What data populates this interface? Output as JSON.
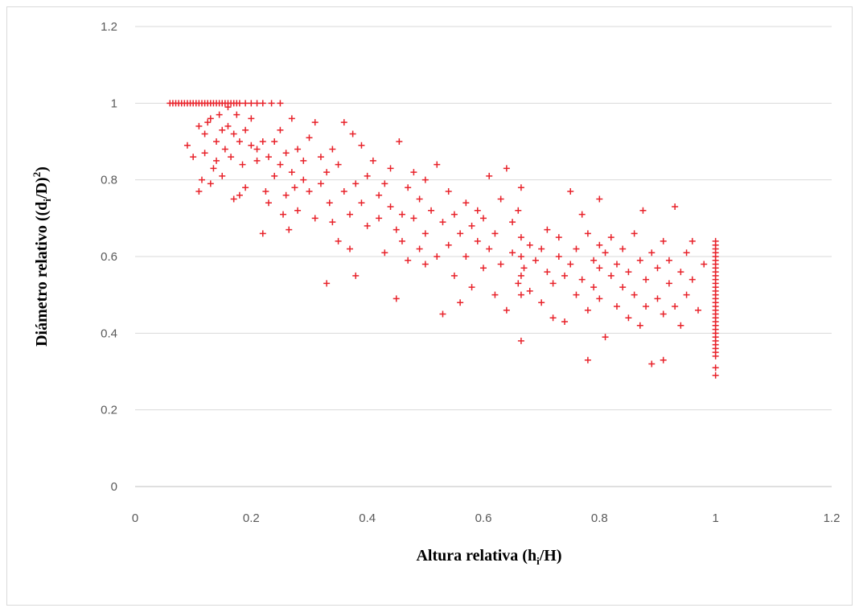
{
  "chart_data": {
    "type": "scatter",
    "title": "",
    "xlabel": {
      "main": "Altura relativa (h",
      "sub": "i",
      "tail": "/H)"
    },
    "ylabel": {
      "main": "Diámetro relativo ((d",
      "sub": "i",
      "mid": "/D)",
      "sup": "2",
      "tail": ")"
    },
    "xlim": [
      0,
      1.2
    ],
    "ylim": [
      0,
      1.2
    ],
    "x_ticks": [
      "0",
      "0.2",
      "0.4",
      "0.6",
      "0.8",
      "1",
      "1.2"
    ],
    "y_ticks": [
      "0",
      "0.2",
      "0.4",
      "0.6",
      "0.8",
      "1",
      "1.2"
    ],
    "grid": "horizontal",
    "marker": "plus",
    "color": "#e8222a",
    "series": [
      {
        "points": [
          [
            0.06,
            1
          ],
          [
            0.065,
            1
          ],
          [
            0.07,
            1
          ],
          [
            0.075,
            1
          ],
          [
            0.08,
            1
          ],
          [
            0.085,
            1
          ],
          [
            0.09,
            1
          ],
          [
            0.095,
            1
          ],
          [
            0.1,
            1
          ],
          [
            0.105,
            1
          ],
          [
            0.11,
            1
          ],
          [
            0.115,
            1
          ],
          [
            0.12,
            1
          ],
          [
            0.125,
            1
          ],
          [
            0.13,
            1
          ],
          [
            0.135,
            1
          ],
          [
            0.14,
            1
          ],
          [
            0.145,
            1
          ],
          [
            0.15,
            1
          ],
          [
            0.155,
            1
          ],
          [
            0.16,
            1
          ],
          [
            0.165,
            1
          ],
          [
            0.17,
            1
          ],
          [
            0.175,
            1
          ],
          [
            0.18,
            1
          ],
          [
            0.19,
            1
          ],
          [
            0.2,
            1
          ],
          [
            0.21,
            1
          ],
          [
            0.22,
            1
          ],
          [
            0.235,
            1
          ],
          [
            0.25,
            1
          ],
          [
            0.09,
            0.89
          ],
          [
            0.1,
            0.86
          ],
          [
            0.11,
            0.94
          ],
          [
            0.11,
            0.77
          ],
          [
            0.115,
            0.8
          ],
          [
            0.12,
            0.92
          ],
          [
            0.12,
            0.87
          ],
          [
            0.125,
            0.95
          ],
          [
            0.13,
            0.96
          ],
          [
            0.13,
            0.79
          ],
          [
            0.135,
            0.83
          ],
          [
            0.14,
            0.9
          ],
          [
            0.14,
            0.85
          ],
          [
            0.145,
            0.97
          ],
          [
            0.15,
            0.93
          ],
          [
            0.15,
            0.81
          ],
          [
            0.155,
            0.88
          ],
          [
            0.16,
            0.94
          ],
          [
            0.16,
            0.99
          ],
          [
            0.165,
            0.86
          ],
          [
            0.17,
            0.92
          ],
          [
            0.17,
            0.75
          ],
          [
            0.175,
            0.97
          ],
          [
            0.18,
            0.9
          ],
          [
            0.18,
            0.76
          ],
          [
            0.185,
            0.84
          ],
          [
            0.19,
            0.93
          ],
          [
            0.19,
            0.78
          ],
          [
            0.2,
            0.89
          ],
          [
            0.2,
            0.96
          ],
          [
            0.21,
            0.85
          ],
          [
            0.21,
            0.88
          ],
          [
            0.22,
            0.9
          ],
          [
            0.22,
            0.66
          ],
          [
            0.225,
            0.77
          ],
          [
            0.23,
            0.86
          ],
          [
            0.23,
            0.74
          ],
          [
            0.24,
            0.81
          ],
          [
            0.24,
            0.9
          ],
          [
            0.25,
            0.84
          ],
          [
            0.25,
            0.93
          ],
          [
            0.255,
            0.71
          ],
          [
            0.26,
            0.76
          ],
          [
            0.26,
            0.87
          ],
          [
            0.265,
            0.67
          ],
          [
            0.27,
            0.82
          ],
          [
            0.27,
            0.96
          ],
          [
            0.275,
            0.78
          ],
          [
            0.28,
            0.88
          ],
          [
            0.28,
            0.72
          ],
          [
            0.29,
            0.85
          ],
          [
            0.29,
            0.8
          ],
          [
            0.3,
            0.91
          ],
          [
            0.3,
            0.77
          ],
          [
            0.31,
            0.95
          ],
          [
            0.31,
            0.7
          ],
          [
            0.32,
            0.86
          ],
          [
            0.32,
            0.79
          ],
          [
            0.33,
            0.82
          ],
          [
            0.33,
            0.53
          ],
          [
            0.335,
            0.74
          ],
          [
            0.34,
            0.88
          ],
          [
            0.34,
            0.69
          ],
          [
            0.35,
            0.84
          ],
          [
            0.35,
            0.64
          ],
          [
            0.36,
            0.77
          ],
          [
            0.36,
            0.95
          ],
          [
            0.37,
            0.71
          ],
          [
            0.37,
            0.62
          ],
          [
            0.375,
            0.92
          ],
          [
            0.38,
            0.79
          ],
          [
            0.38,
            0.55
          ],
          [
            0.39,
            0.89
          ],
          [
            0.39,
            0.74
          ],
          [
            0.4,
            0.81
          ],
          [
            0.4,
            0.68
          ],
          [
            0.41,
            0.85
          ],
          [
            0.42,
            0.76
          ],
          [
            0.42,
            0.7
          ],
          [
            0.43,
            0.79
          ],
          [
            0.43,
            0.61
          ],
          [
            0.44,
            0.73
          ],
          [
            0.44,
            0.83
          ],
          [
            0.45,
            0.67
          ],
          [
            0.45,
            0.49
          ],
          [
            0.455,
            0.9
          ],
          [
            0.46,
            0.71
          ],
          [
            0.46,
            0.64
          ],
          [
            0.47,
            0.78
          ],
          [
            0.47,
            0.59
          ],
          [
            0.48,
            0.82
          ],
          [
            0.48,
            0.7
          ],
          [
            0.49,
            0.75
          ],
          [
            0.49,
            0.62
          ],
          [
            0.5,
            0.8
          ],
          [
            0.5,
            0.66
          ],
          [
            0.5,
            0.58
          ],
          [
            0.51,
            0.72
          ],
          [
            0.52,
            0.84
          ],
          [
            0.52,
            0.6
          ],
          [
            0.53,
            0.69
          ],
          [
            0.53,
            0.45
          ],
          [
            0.54,
            0.77
          ],
          [
            0.54,
            0.63
          ],
          [
            0.55,
            0.71
          ],
          [
            0.55,
            0.55
          ],
          [
            0.56,
            0.48
          ],
          [
            0.56,
            0.66
          ],
          [
            0.57,
            0.74
          ],
          [
            0.57,
            0.6
          ],
          [
            0.58,
            0.68
          ],
          [
            0.58,
            0.52
          ],
          [
            0.59,
            0.72
          ],
          [
            0.59,
            0.64
          ],
          [
            0.6,
            0.57
          ],
          [
            0.6,
            0.7
          ],
          [
            0.61,
            0.81
          ],
          [
            0.61,
            0.62
          ],
          [
            0.62,
            0.66
          ],
          [
            0.62,
            0.5
          ],
          [
            0.63,
            0.75
          ],
          [
            0.63,
            0.58
          ],
          [
            0.64,
            0.83
          ],
          [
            0.64,
            0.46
          ],
          [
            0.65,
            0.69
          ],
          [
            0.65,
            0.61
          ],
          [
            0.66,
            0.53
          ],
          [
            0.66,
            0.72
          ],
          [
            0.665,
            0.78
          ],
          [
            0.665,
            0.65
          ],
          [
            0.665,
            0.6
          ],
          [
            0.665,
            0.55
          ],
          [
            0.665,
            0.5
          ],
          [
            0.665,
            0.38
          ],
          [
            0.67,
            0.57
          ],
          [
            0.68,
            0.63
          ],
          [
            0.68,
            0.51
          ],
          [
            0.69,
            0.59
          ],
          [
            0.7,
            0.62
          ],
          [
            0.7,
            0.48
          ],
          [
            0.71,
            0.56
          ],
          [
            0.71,
            0.67
          ],
          [
            0.72,
            0.53
          ],
          [
            0.72,
            0.44
          ],
          [
            0.73,
            0.6
          ],
          [
            0.73,
            0.65
          ],
          [
            0.74,
            0.55
          ],
          [
            0.74,
            0.43
          ],
          [
            0.75,
            0.77
          ],
          [
            0.75,
            0.58
          ],
          [
            0.76,
            0.62
          ],
          [
            0.76,
            0.5
          ],
          [
            0.77,
            0.71
          ],
          [
            0.77,
            0.54
          ],
          [
            0.78,
            0.66
          ],
          [
            0.78,
            0.46
          ],
          [
            0.78,
            0.33
          ],
          [
            0.79,
            0.59
          ],
          [
            0.79,
            0.52
          ],
          [
            0.8,
            0.75
          ],
          [
            0.8,
            0.63
          ],
          [
            0.8,
            0.57
          ],
          [
            0.8,
            0.49
          ],
          [
            0.81,
            0.61
          ],
          [
            0.81,
            0.39
          ],
          [
            0.82,
            0.55
          ],
          [
            0.82,
            0.65
          ],
          [
            0.83,
            0.47
          ],
          [
            0.83,
            0.58
          ],
          [
            0.84,
            0.52
          ],
          [
            0.84,
            0.62
          ],
          [
            0.85,
            0.56
          ],
          [
            0.85,
            0.44
          ],
          [
            0.86,
            0.66
          ],
          [
            0.86,
            0.5
          ],
          [
            0.87,
            0.59
          ],
          [
            0.87,
            0.42
          ],
          [
            0.875,
            0.72
          ],
          [
            0.88,
            0.54
          ],
          [
            0.88,
            0.47
          ],
          [
            0.89,
            0.61
          ],
          [
            0.89,
            0.32
          ],
          [
            0.9,
            0.57
          ],
          [
            0.9,
            0.49
          ],
          [
            0.91,
            0.64
          ],
          [
            0.91,
            0.45
          ],
          [
            0.91,
            0.33
          ],
          [
            0.92,
            0.53
          ],
          [
            0.92,
            0.59
          ],
          [
            0.93,
            0.47
          ],
          [
            0.93,
            0.73
          ],
          [
            0.94,
            0.56
          ],
          [
            0.94,
            0.42
          ],
          [
            0.95,
            0.61
          ],
          [
            0.95,
            0.5
          ],
          [
            0.96,
            0.64
          ],
          [
            0.96,
            0.54
          ],
          [
            0.97,
            0.46
          ],
          [
            0.98,
            0.58
          ],
          [
            1.0,
            0.64
          ],
          [
            1.0,
            0.63
          ],
          [
            1.0,
            0.62
          ],
          [
            1.0,
            0.61
          ],
          [
            1.0,
            0.6
          ],
          [
            1.0,
            0.59
          ],
          [
            1.0,
            0.58
          ],
          [
            1.0,
            0.57
          ],
          [
            1.0,
            0.56
          ],
          [
            1.0,
            0.55
          ],
          [
            1.0,
            0.54
          ],
          [
            1.0,
            0.53
          ],
          [
            1.0,
            0.52
          ],
          [
            1.0,
            0.51
          ],
          [
            1.0,
            0.5
          ],
          [
            1.0,
            0.49
          ],
          [
            1.0,
            0.48
          ],
          [
            1.0,
            0.47
          ],
          [
            1.0,
            0.46
          ],
          [
            1.0,
            0.45
          ],
          [
            1.0,
            0.44
          ],
          [
            1.0,
            0.43
          ],
          [
            1.0,
            0.42
          ],
          [
            1.0,
            0.41
          ],
          [
            1.0,
            0.4
          ],
          [
            1.0,
            0.39
          ],
          [
            1.0,
            0.38
          ],
          [
            1.0,
            0.37
          ],
          [
            1.0,
            0.36
          ],
          [
            1.0,
            0.35
          ],
          [
            1.0,
            0.34
          ],
          [
            1.0,
            0.31
          ],
          [
            1.0,
            0.29
          ]
        ]
      }
    ]
  }
}
